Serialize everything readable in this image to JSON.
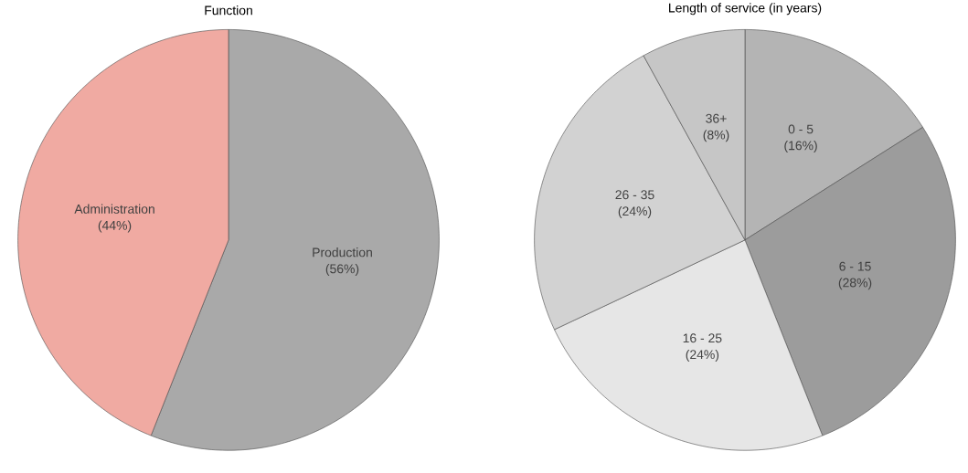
{
  "chart_data": [
    {
      "type": "pie",
      "title": "Function",
      "categories": [
        "Production",
        "Administration"
      ],
      "values": [
        56,
        44
      ],
      "value_labels": [
        "(56%)",
        "(44%)"
      ],
      "colors": [
        "#a9a9a9",
        "#f0aaa2"
      ]
    },
    {
      "type": "pie",
      "title": "Length of service (in years)",
      "categories": [
        "0 - 5",
        "6 - 15",
        "16 - 25",
        "26 - 35",
        "36+"
      ],
      "values": [
        16,
        28,
        24,
        24,
        8
      ],
      "value_labels": [
        "(16%)",
        "(28%)",
        "(24%)",
        "(24%)",
        "(8%)"
      ],
      "colors": [
        "#b4b4b4",
        "#9c9c9c",
        "#e6e6e6",
        "#d2d2d2",
        "#c6c6c6"
      ]
    }
  ]
}
